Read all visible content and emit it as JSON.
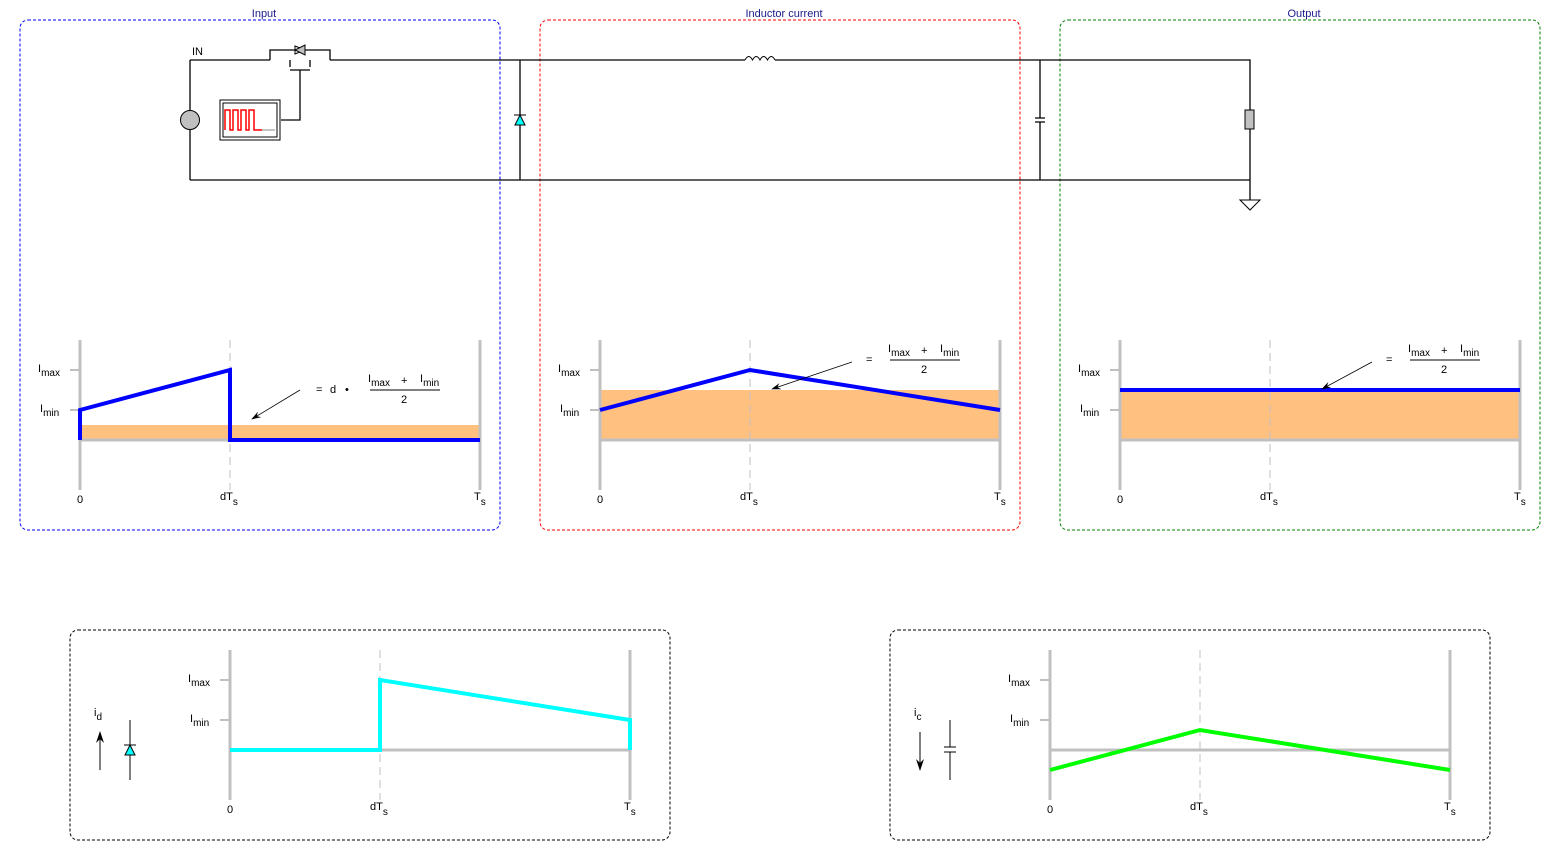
{
  "panels": {
    "input": {
      "title": "Input",
      "color": "#0000ff"
    },
    "inductor": {
      "title": "Inductor current",
      "color": "#ff0000"
    },
    "output": {
      "title": "Output",
      "color": "#008000"
    }
  },
  "circuit": {
    "source_label": "IN"
  },
  "axis": {
    "I": "I",
    "max": "max",
    "min": "min",
    "zero": "0",
    "dT": "dT",
    "T": "T",
    "s": "s"
  },
  "formula": {
    "eq": "=",
    "d": "d",
    "times": "•",
    "plus": "+",
    "den": "2"
  },
  "diode_plot": {
    "i": "i",
    "sub": "d",
    "color": "#00ffff"
  },
  "cap_plot": {
    "i": "i",
    "sub": "c",
    "color": "#00ff00"
  },
  "colors": {
    "waveform": "#0000ff",
    "fill": "#ffc080",
    "axis": "#c0c0c0"
  }
}
